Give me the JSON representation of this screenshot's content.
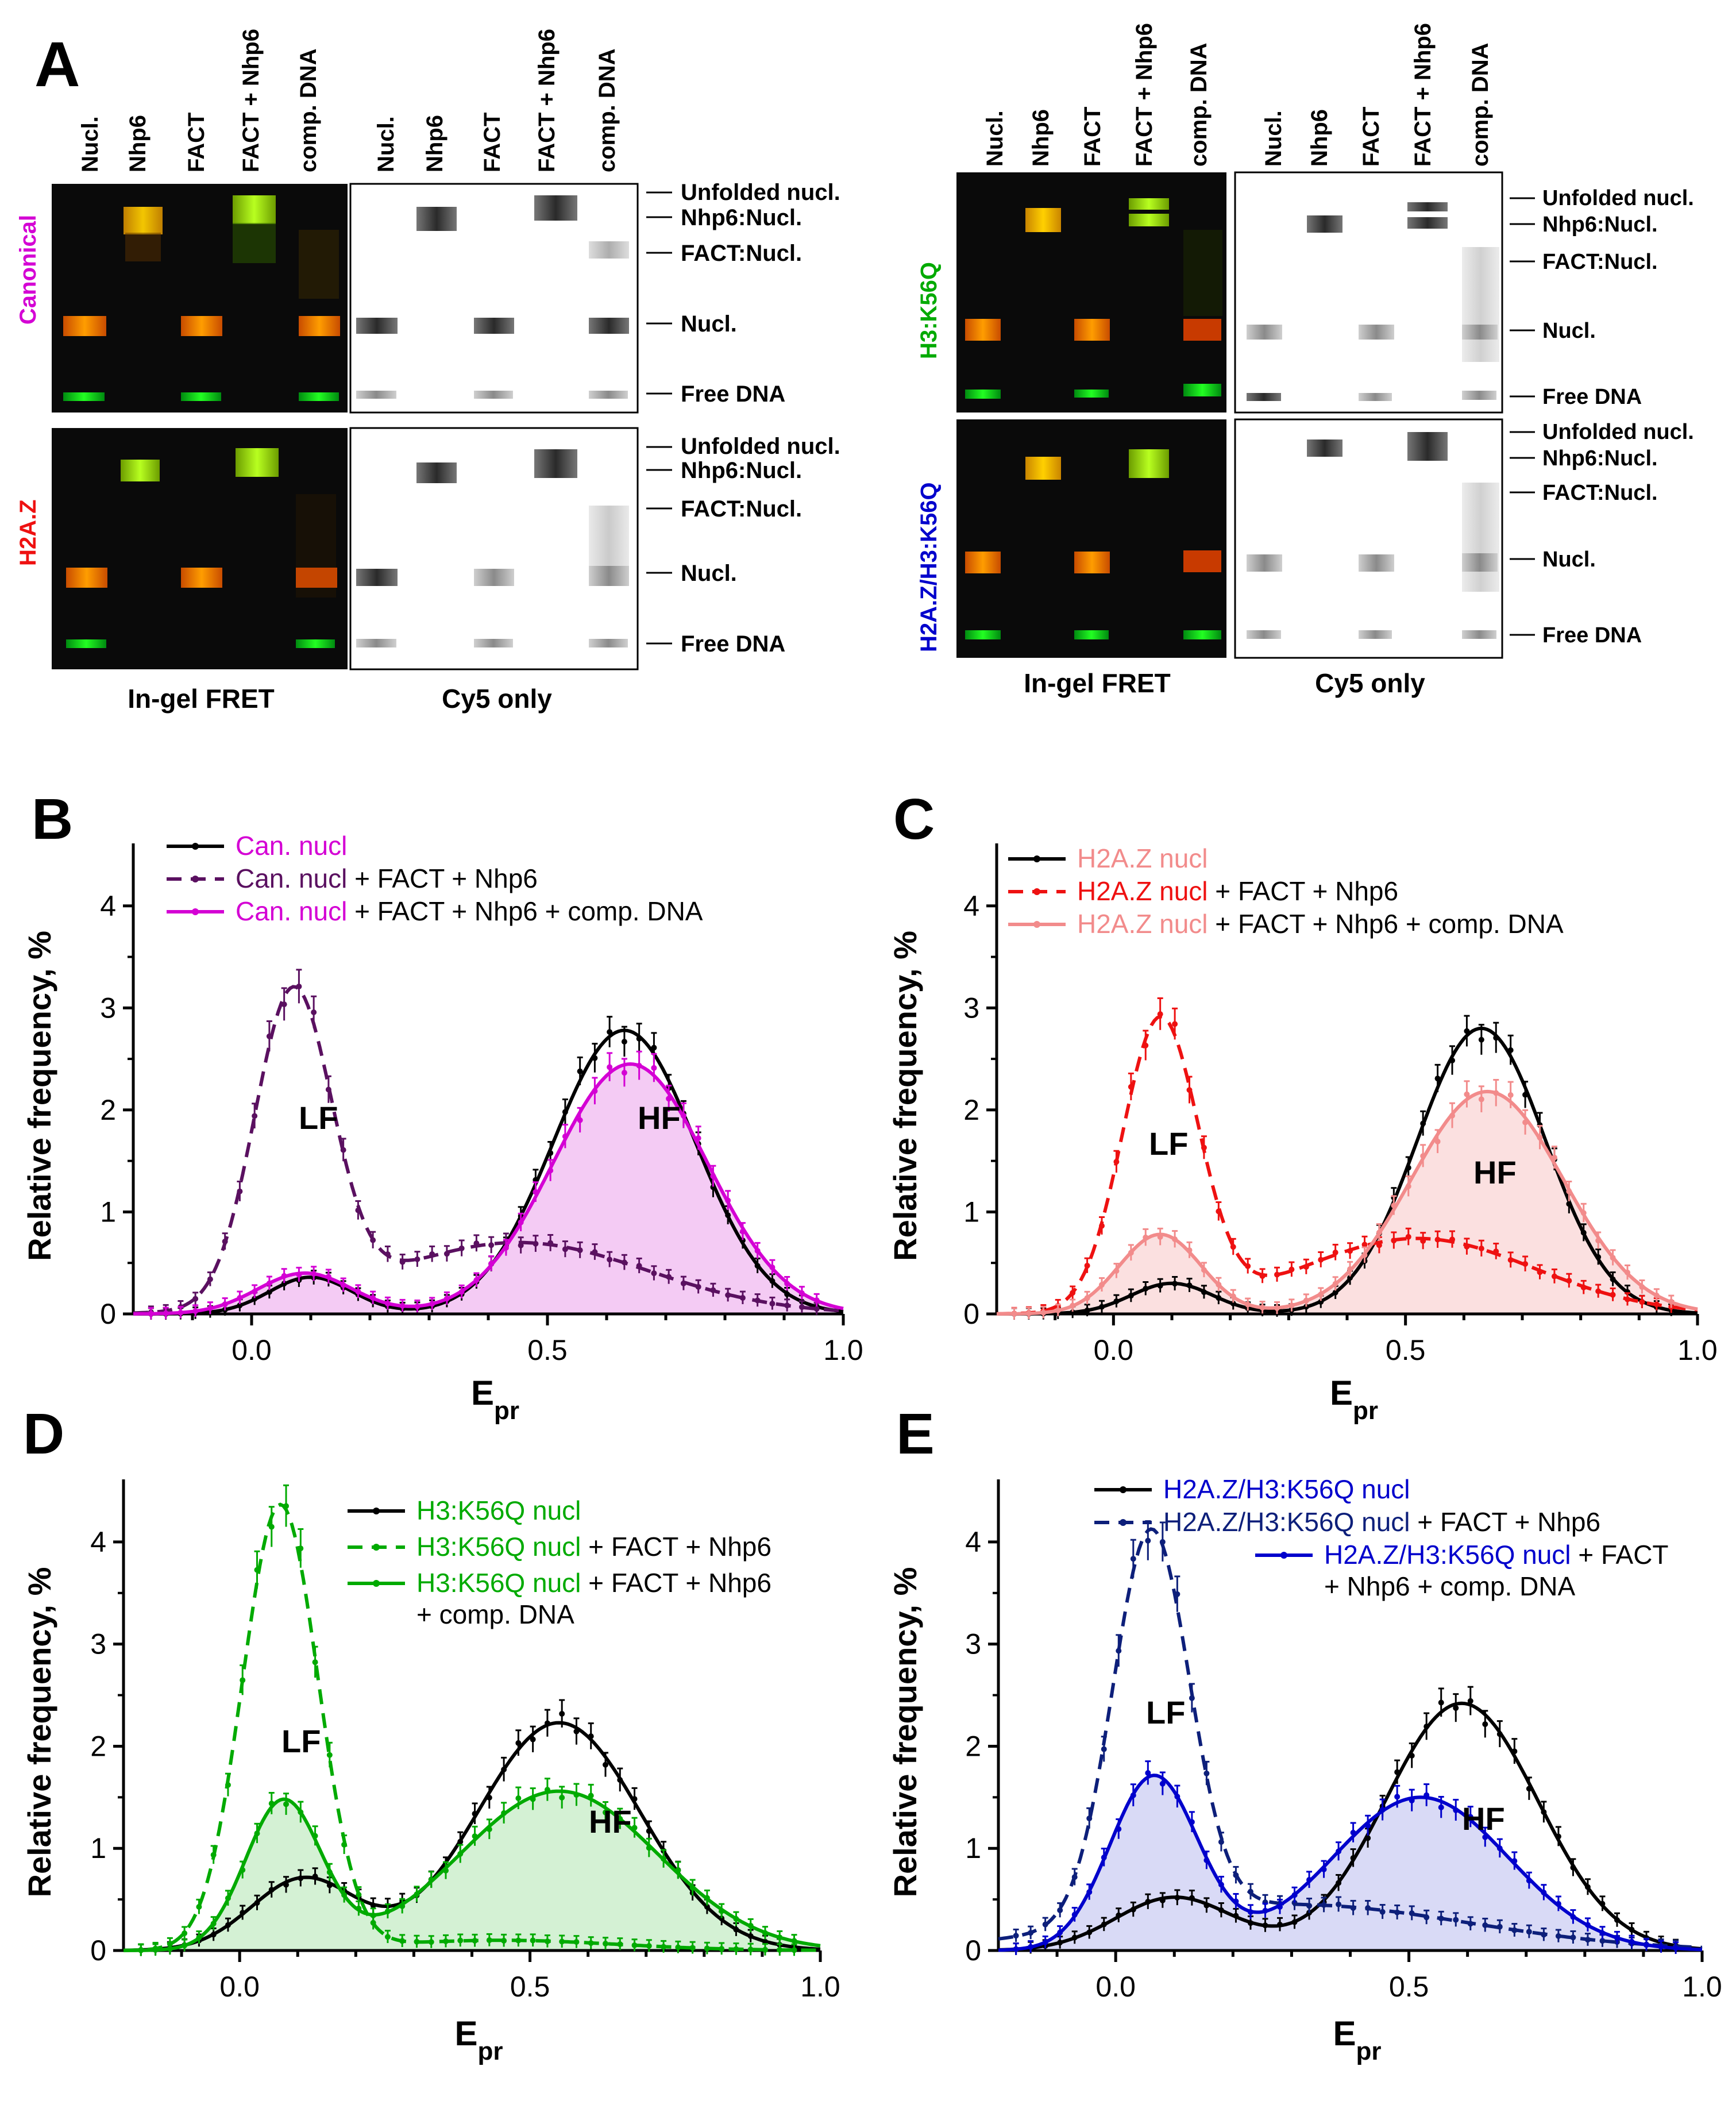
{
  "figure": {
    "panel_labels": [
      "A",
      "B",
      "C",
      "D",
      "E"
    ],
    "colors": {
      "canonical": "#d400d4",
      "h2az": "#ee1111",
      "h3k56q": "#00aa00",
      "h2az_h3k56q": "#0000cc",
      "dark_purple": "#5a1060",
      "pink_fill": "#f2c2f2",
      "salmon_line": "#f28b8b",
      "salmon_fill": "#fadada",
      "green_fill": "#ccefcc",
      "navy_dashed": "#0d1f7a",
      "blue_fill": "#d2d4f4"
    }
  },
  "gels": {
    "lanes_fret": [
      "Nucl.",
      "Nhp6",
      "FACT",
      "FACT + Nhp6",
      "comp. DNA"
    ],
    "lanes_cy5": [
      "Nucl.",
      "Nhp6",
      "FACT",
      "FACT + Nhp6",
      "comp. DNA"
    ],
    "band_labels": [
      "Unfolded nucl.",
      "Nhp6:Nucl.",
      "FACT:Nucl.",
      "Nucl.",
      "Free DNA"
    ],
    "rows": {
      "canonical": "Canonical",
      "h2az": "H2A.Z",
      "h3k56q": "H3:K56Q",
      "h2az_h3k56q": "H2A.Z/H3:K56Q"
    },
    "captions": {
      "fret": "In-gel FRET",
      "cy5": "Cy5 only"
    }
  },
  "chart_data": [
    {
      "panel": "B",
      "type": "line",
      "xlabel": "E",
      "xlabel_sub": "pr",
      "ylabel": "Relative frequency, %",
      "xlim": [
        -0.2,
        1.0
      ],
      "ylim": [
        0,
        4.5
      ],
      "xticks": [
        "0.0",
        "0.5",
        "1.0"
      ],
      "yticks": [
        "0",
        "1",
        "2",
        "3",
        "4"
      ],
      "annotations": [
        "LF",
        "HF"
      ],
      "legend": [
        {
          "colored": "Can. nucl",
          "rest": ""
        },
        {
          "colored": "Can. nucl",
          "rest": " + FACT + Nhp6"
        },
        {
          "colored": "Can. nucl",
          "rest": " + FACT + Nhp6 + comp. DNA"
        }
      ],
      "series": [
        {
          "name": "Can. nucl",
          "style": "solid",
          "color": "#000000",
          "peaks": [
            {
              "mu": 0.1,
              "sigma": 0.07,
              "amp": 0.36
            },
            {
              "mu": 0.63,
              "sigma": 0.12,
              "amp": 2.78
            }
          ]
        },
        {
          "name": "Can. nucl + FACT + Nhp6",
          "style": "dashed",
          "color": "#5a1060",
          "peaks": [
            {
              "mu": 0.07,
              "sigma": 0.065,
              "amp": 3.05
            },
            {
              "mu": 0.45,
              "sigma": 0.22,
              "amp": 0.7
            }
          ]
        },
        {
          "name": "Can. nucl + FACT + Nhp6 + comp. DNA",
          "style": "solid",
          "color": "#d400d4",
          "fill": "#f2c2f2",
          "peaks": [
            {
              "mu": 0.09,
              "sigma": 0.08,
              "amp": 0.4
            },
            {
              "mu": 0.64,
              "sigma": 0.13,
              "amp": 2.45
            }
          ]
        }
      ]
    },
    {
      "panel": "C",
      "type": "line",
      "xlabel": "E",
      "xlabel_sub": "pr",
      "ylabel": "Relative frequency, %",
      "xlim": [
        -0.2,
        1.0
      ],
      "ylim": [
        0,
        4.5
      ],
      "xticks": [
        "0.0",
        "0.5",
        "1.0"
      ],
      "yticks": [
        "0",
        "1",
        "2",
        "3",
        "4"
      ],
      "annotations": [
        "LF",
        "HF"
      ],
      "legend": [
        {
          "colored": "H2A.Z nucl",
          "rest": ""
        },
        {
          "colored": "H2A.Z nucl",
          "rest": " + FACT + Nhp6"
        },
        {
          "colored": "H2A.Z nucl",
          "rest": " + FACT + Nhp6 + comp. DNA"
        }
      ],
      "series": [
        {
          "name": "H2A.Z nucl",
          "style": "solid",
          "color": "#000000",
          "peaks": [
            {
              "mu": 0.1,
              "sigma": 0.07,
              "amp": 0.3
            },
            {
              "mu": 0.63,
              "sigma": 0.11,
              "amp": 2.8
            }
          ]
        },
        {
          "name": "H2A.Z nucl + FACT + Nhp6",
          "style": "dashed",
          "color": "#ee1111",
          "peaks": [
            {
              "mu": 0.08,
              "sigma": 0.065,
              "amp": 2.85
            },
            {
              "mu": 0.52,
              "sigma": 0.2,
              "amp": 0.74
            }
          ]
        },
        {
          "name": "H2A.Z nucl + FACT + Nhp6 + comp. DNA",
          "style": "solid",
          "color": "#f28b8b",
          "fill": "#fadada",
          "peaks": [
            {
              "mu": 0.08,
              "sigma": 0.07,
              "amp": 0.78
            },
            {
              "mu": 0.64,
              "sigma": 0.13,
              "amp": 2.18
            }
          ]
        }
      ]
    },
    {
      "panel": "D",
      "type": "line",
      "xlabel": "E",
      "xlabel_sub": "pr",
      "ylabel": "Relative frequency, %",
      "xlim": [
        -0.2,
        1.0
      ],
      "ylim": [
        0,
        4.5
      ],
      "xticks": [
        "0.0",
        "0.5",
        "1.0"
      ],
      "yticks": [
        "0",
        "1",
        "2",
        "3",
        "4"
      ],
      "annotations": [
        "LF",
        "HF"
      ],
      "legend": [
        {
          "colored": "H3:K56Q nucl",
          "rest": ""
        },
        {
          "colored": "H3:K56Q nucl",
          "rest": " + FACT + Nhp6"
        },
        {
          "colored": "H3:K56Q nucl",
          "rest": " + FACT + Nhp6",
          "line2": "+ comp. DNA"
        }
      ],
      "series": [
        {
          "name": "H3:K56Q nucl",
          "style": "solid",
          "color": "#000000",
          "peaks": [
            {
              "mu": 0.11,
              "sigma": 0.09,
              "amp": 0.7
            },
            {
              "mu": 0.55,
              "sigma": 0.14,
              "amp": 2.23
            }
          ]
        },
        {
          "name": "H3:K56Q nucl + FACT + Nhp6",
          "style": "dashed",
          "color": "#00aa00",
          "peaks": [
            {
              "mu": 0.07,
              "sigma": 0.065,
              "amp": 4.35
            },
            {
              "mu": 0.45,
              "sigma": 0.2,
              "amp": 0.1
            }
          ]
        },
        {
          "name": "H3:K56Q nucl + FACT + Nhp6 + comp. DNA",
          "style": "solid",
          "color": "#00aa00",
          "fill": "#ccefcc",
          "peaks": [
            {
              "mu": 0.075,
              "sigma": 0.065,
              "amp": 1.45
            },
            {
              "mu": 0.55,
              "sigma": 0.17,
              "amp": 1.56
            }
          ]
        }
      ]
    },
    {
      "panel": "E",
      "type": "line",
      "xlabel": "E",
      "xlabel_sub": "pr",
      "ylabel": "Relative frequency, %",
      "xlim": [
        -0.2,
        1.0
      ],
      "ylim": [
        0,
        4.5
      ],
      "xticks": [
        "0.0",
        "0.5",
        "1.0"
      ],
      "yticks": [
        "0",
        "1",
        "2",
        "3",
        "4"
      ],
      "annotations": [
        "LF",
        "HF"
      ],
      "legend": [
        {
          "colored": "H2A.Z/H3:K56Q nucl",
          "rest": ""
        },
        {
          "colored": "H2A.Z/H3:K56Q nucl",
          "rest": " + FACT + Nhp6"
        },
        {
          "colored": "H2A.Z/H3:K56Q nucl",
          "rest": " + FACT",
          "line2": "+ Nhp6 + comp. DNA"
        }
      ],
      "series": [
        {
          "name": "H2A.Z/H3:K56Q nucl",
          "style": "solid",
          "color": "#000000",
          "peaks": [
            {
              "mu": 0.1,
              "sigma": 0.1,
              "amp": 0.52
            },
            {
              "mu": 0.59,
              "sigma": 0.13,
              "amp": 2.42
            }
          ]
        },
        {
          "name": "H2A.Z/H3:K56Q nucl + FACT + Nhp6",
          "style": "dashed",
          "color": "#0d1f7a",
          "peaks": [
            {
              "mu": 0.06,
              "sigma": 0.065,
              "amp": 3.8
            },
            {
              "mu": 0.3,
              "sigma": 0.3,
              "amp": 0.45
            }
          ]
        },
        {
          "name": "H2A.Z/H3:K56Q nucl + FACT + Nhp6 + comp. DNA",
          "style": "solid",
          "color": "#0000cc",
          "fill": "#d2d4f4",
          "peaks": [
            {
              "mu": 0.065,
              "sigma": 0.075,
              "amp": 1.7
            },
            {
              "mu": 0.52,
              "sigma": 0.15,
              "amp": 1.5
            }
          ]
        }
      ]
    }
  ]
}
